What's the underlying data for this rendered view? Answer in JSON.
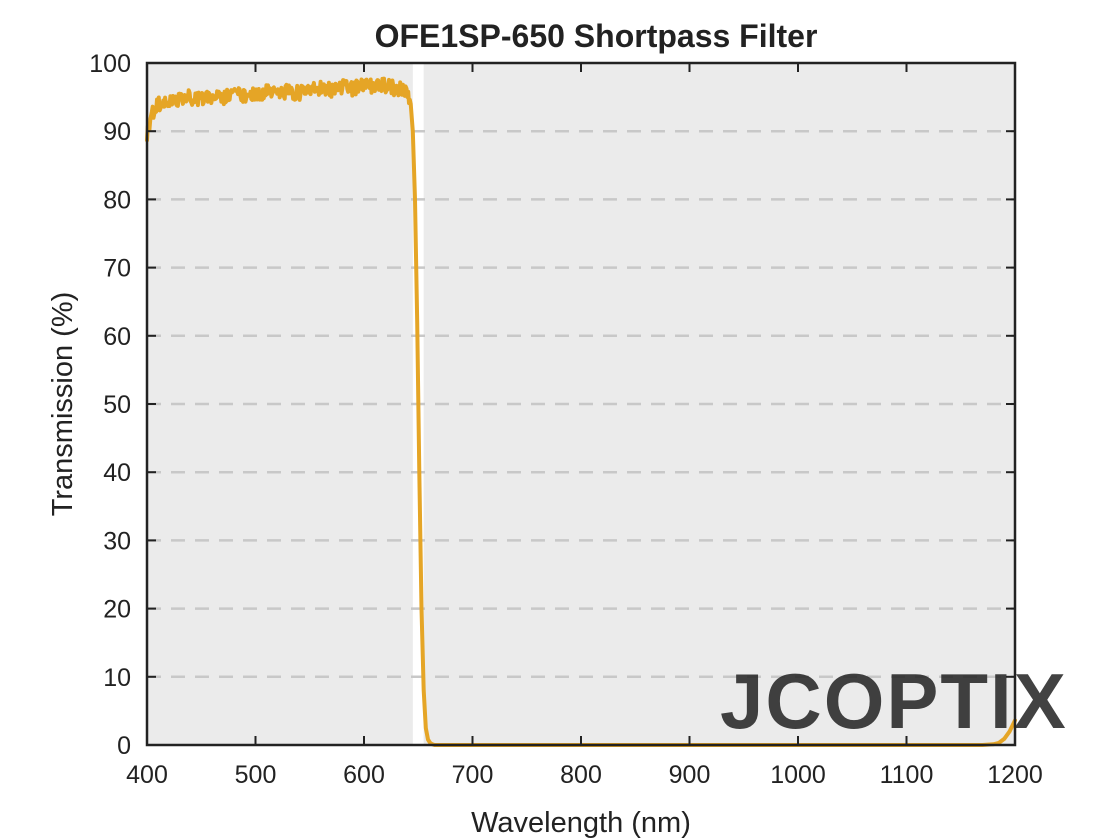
{
  "chart_data": {
    "type": "line",
    "title": "OFE1SP-650 Shortpass Filter",
    "xlabel": "Wavelength (nm)",
    "ylabel": "Transmission (%)",
    "xlim": [
      400,
      1200
    ],
    "ylim": [
      0,
      100
    ],
    "xticks": [
      "400",
      "500",
      "600",
      "700",
      "800",
      "900",
      "1000",
      "1100",
      "1200"
    ],
    "yticks": [
      "0",
      "10",
      "20",
      "30",
      "40",
      "50",
      "60",
      "70",
      "80",
      "90",
      "100"
    ],
    "grid": "horizontal dashed",
    "series": [
      {
        "color": "#e5a526",
        "x": [
          400,
          403,
          406,
          410,
          415,
          420,
          430,
          440,
          450,
          460,
          470,
          480,
          490,
          500,
          510,
          520,
          530,
          540,
          550,
          560,
          570,
          580,
          590,
          600,
          610,
          620,
          630,
          635,
          640,
          643,
          645,
          647,
          649,
          651,
          653,
          655,
          657,
          659,
          661,
          663,
          665,
          670,
          700,
          800,
          900,
          1000,
          1100,
          1150,
          1170,
          1180,
          1185,
          1190,
          1195,
          1200
        ],
        "y": [
          89.5,
          91.5,
          93.0,
          93.8,
          94.2,
          94.5,
          94.8,
          95.0,
          94.7,
          95.2,
          95.0,
          95.5,
          95.3,
          95.4,
          95.8,
          95.6,
          95.9,
          95.5,
          96.0,
          96.2,
          96.0,
          96.5,
          96.3,
          96.8,
          96.5,
          96.7,
          96.2,
          96.0,
          95.5,
          94.0,
          90.0,
          80.0,
          62.0,
          40.0,
          20.0,
          8.0,
          2.5,
          0.8,
          0.3,
          0.1,
          0.0,
          0.0,
          0.0,
          0.0,
          0.0,
          0.0,
          0.0,
          0.0,
          0.0,
          0.1,
          0.3,
          0.9,
          2.0,
          3.6
        ]
      }
    ]
  },
  "watermark": {
    "text": "JCOPTIX"
  }
}
